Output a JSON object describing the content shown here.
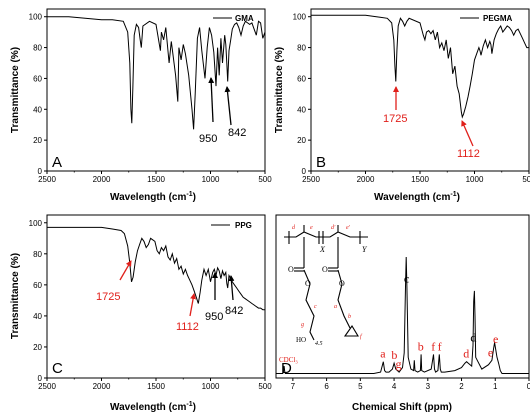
{
  "colors": {
    "line": "#000000",
    "red": "#e0201b",
    "black": "#000000"
  },
  "chart_data": [
    {
      "type": "line",
      "panel_letter": "A",
      "legend": "GMA",
      "xlabel": "Wavelength (cm",
      "xlabel_sup": "-1",
      "xlabel_close": ")",
      "ylabel": "Transmittance (%)",
      "xlim": [
        2500,
        500
      ],
      "ylim": [
        0,
        105
      ],
      "xticks": [
        "2500",
        "2000",
        "1500",
        "1000",
        "500"
      ],
      "yticks": [
        "0",
        "20",
        "40",
        "60",
        "80",
        "100"
      ],
      "x": [
        2500,
        2300,
        2150,
        2000,
        1900,
        1800,
        1760,
        1740,
        1730,
        1722,
        1712,
        1700,
        1680,
        1660,
        1645,
        1635,
        1620,
        1560,
        1500,
        1460,
        1450,
        1430,
        1410,
        1380,
        1360,
        1320,
        1300,
        1290,
        1270,
        1250,
        1230,
        1200,
        1170,
        1155,
        1140,
        1120,
        1100,
        1080,
        1050,
        1030,
        1010,
        990,
        970,
        950,
        935,
        920,
        905,
        890,
        870,
        860,
        850,
        842,
        830,
        815,
        800,
        780,
        760,
        740,
        720,
        700,
        680,
        660,
        640,
        620,
        600,
        580,
        560,
        540,
        520,
        500
      ],
      "y": [
        100,
        100,
        99,
        98,
        98,
        97,
        90,
        70,
        40,
        31,
        55,
        88,
        95,
        93,
        85,
        80,
        94,
        97,
        95,
        78,
        90,
        85,
        93,
        70,
        84,
        62,
        45,
        80,
        72,
        82,
        76,
        62,
        40,
        27,
        50,
        86,
        93,
        78,
        60,
        80,
        93,
        88,
        77,
        55,
        80,
        62,
        86,
        70,
        88,
        82,
        70,
        58,
        78,
        85,
        92,
        95,
        96,
        93,
        88,
        94,
        97,
        96,
        95,
        96,
        92,
        88,
        97,
        96,
        86,
        90
      ]
    },
    {
      "type": "line",
      "panel_letter": "B",
      "legend": "PEGMA",
      "xlabel": "Wavelength (cm",
      "xlabel_sup": "-1",
      "xlabel_close": ")",
      "ylabel": "Transmittance (%)",
      "xlim": [
        2500,
        500
      ],
      "ylim": [
        0,
        105
      ],
      "xticks": [
        "2500",
        "2000",
        "1500",
        "1000",
        "500"
      ],
      "yticks": [
        "0",
        "20",
        "40",
        "60",
        "80",
        "100"
      ],
      "x": [
        2500,
        2300,
        2150,
        2000,
        1900,
        1800,
        1760,
        1740,
        1730,
        1722,
        1712,
        1700,
        1680,
        1660,
        1640,
        1620,
        1600,
        1500,
        1470,
        1455,
        1440,
        1420,
        1400,
        1380,
        1360,
        1340,
        1320,
        1300,
        1280,
        1260,
        1240,
        1220,
        1200,
        1180,
        1160,
        1140,
        1120,
        1112,
        1100,
        1080,
        1060,
        1040,
        1020,
        1000,
        980,
        960,
        950,
        940,
        920,
        900,
        880,
        860,
        850,
        840,
        820,
        800,
        780,
        760,
        740,
        720,
        700,
        680,
        660,
        640,
        620,
        600,
        580,
        560,
        540,
        520,
        500
      ],
      "y": [
        101,
        101,
        101,
        101,
        100,
        99,
        96,
        85,
        68,
        58,
        78,
        94,
        99,
        97,
        94,
        97,
        99,
        96,
        88,
        85,
        90,
        91,
        89,
        91,
        85,
        90,
        80,
        83,
        78,
        85,
        73,
        80,
        63,
        68,
        55,
        50,
        38,
        35,
        37,
        42,
        48,
        55,
        63,
        72,
        76,
        80,
        78,
        75,
        81,
        85,
        80,
        84,
        82,
        76,
        85,
        89,
        92,
        94,
        90,
        92,
        94,
        93,
        91,
        88,
        91,
        92,
        89,
        86,
        83,
        80,
        80
      ]
    },
    {
      "type": "line",
      "panel_letter": "C",
      "legend": "PPG",
      "xlabel": "Wavelength (cm",
      "xlabel_sup": "-1",
      "xlabel_close": ")",
      "ylabel": "Transmittance (%)",
      "xlim": [
        2500,
        500
      ],
      "ylim": [
        0,
        105
      ],
      "xticks": [
        "2500",
        "2000",
        "1500",
        "1000",
        "500"
      ],
      "yticks": [
        "0",
        "20",
        "40",
        "60",
        "80",
        "100"
      ],
      "x": [
        2500,
        2300,
        2150,
        2000,
        1900,
        1820,
        1790,
        1760,
        1740,
        1725,
        1710,
        1690,
        1670,
        1650,
        1630,
        1610,
        1590,
        1570,
        1550,
        1530,
        1510,
        1490,
        1470,
        1450,
        1430,
        1410,
        1390,
        1370,
        1350,
        1330,
        1310,
        1290,
        1270,
        1250,
        1230,
        1210,
        1190,
        1170,
        1150,
        1130,
        1112,
        1095,
        1080,
        1060,
        1040,
        1020,
        1000,
        980,
        965,
        950,
        935,
        920,
        905,
        890,
        875,
        860,
        850,
        842,
        830,
        815,
        800,
        780,
        760,
        740,
        720,
        700,
        680,
        660,
        640,
        620,
        600,
        580,
        560,
        540,
        520,
        500
      ],
      "y": [
        97,
        97,
        97,
        97,
        96,
        95,
        93,
        85,
        74,
        62,
        65,
        75,
        82,
        86,
        90,
        88,
        84,
        86,
        90,
        89,
        88,
        82,
        80,
        84,
        82,
        85,
        78,
        76,
        80,
        74,
        77,
        70,
        72,
        67,
        70,
        66,
        63,
        60,
        56,
        52,
        48,
        55,
        63,
        70,
        66,
        70,
        62,
        68,
        70,
        66,
        71,
        69,
        64,
        69,
        66,
        68,
        61,
        58,
        66,
        64,
        62,
        60,
        58,
        56,
        54,
        52,
        51,
        50,
        49,
        48,
        47,
        46,
        45,
        45,
        44,
        44
      ]
    },
    {
      "type": "line",
      "panel_letter": "D",
      "xlabel": "Chemical Shift (ppm)",
      "xlim": [
        7.5,
        0
      ],
      "xticks": [
        "7",
        "6",
        "5",
        "4",
        "3",
        "2",
        "1",
        "0"
      ],
      "x": [
        7.5,
        7.3,
        7.28,
        7.26,
        7.24,
        7.22,
        7.0,
        6.0,
        5.0,
        4.6,
        4.4,
        4.32,
        4.28,
        4.24,
        4.15,
        4.05,
        4.0,
        3.95,
        3.85,
        3.75,
        3.7,
        3.66,
        3.64,
        3.62,
        3.58,
        3.5,
        3.42,
        3.4,
        3.38,
        3.3,
        3.22,
        3.2,
        3.18,
        3.1,
        2.9,
        2.83,
        2.8,
        2.77,
        2.7,
        2.66,
        2.63,
        2.6,
        2.5,
        2.2,
        2.0,
        1.9,
        1.85,
        1.8,
        1.7,
        1.66,
        1.64,
        1.62,
        1.6,
        1.58,
        1.4,
        1.2,
        1.1,
        1.05,
        1.02,
        1.0,
        0.95,
        0.9,
        0.85,
        0.8,
        0.5,
        0.0
      ],
      "y": [
        1,
        1,
        2,
        6,
        2,
        1,
        1,
        1,
        1,
        1,
        2,
        9,
        3,
        2,
        2,
        4,
        8,
        4,
        2,
        5,
        15,
        60,
        80,
        60,
        12,
        4,
        3,
        10,
        3,
        2,
        3,
        14,
        3,
        2,
        4,
        14,
        4,
        2,
        3,
        14,
        4,
        2,
        2,
        3,
        5,
        8,
        9,
        8,
        6,
        20,
        50,
        57,
        40,
        12,
        4,
        7,
        10,
        18,
        22,
        19,
        12,
        8,
        3,
        1,
        1,
        1
      ],
      "peak_labels": [
        {
          "text": "a",
          "x": 4.33
        },
        {
          "text": "b",
          "x": 3.99
        },
        {
          "text": "g",
          "x": 3.87
        },
        {
          "text": "c",
          "x": 3.63
        },
        {
          "text": "b",
          "x": 3.21
        },
        {
          "text": "f",
          "x": 2.84
        },
        {
          "text": "f",
          "x": 2.65
        },
        {
          "text": "d",
          "x": 1.86
        },
        {
          "text": "d",
          "x": 1.65
        },
        {
          "text": "e",
          "x": 1.14
        },
        {
          "text": "e",
          "x": 0.99
        }
      ],
      "solvent_label": "CDCl₃"
    }
  ],
  "annotations": {
    "A": [
      "950",
      "842"
    ],
    "B": [
      "1725",
      "1112"
    ],
    "C": [
      "1725",
      "1112",
      "950",
      "842"
    ]
  },
  "structure": {
    "top_labels": [
      "d",
      "e",
      "d'",
      "e'"
    ],
    "sub_x": "X",
    "sub_y": "Y",
    "ester_left": [
      "O",
      "O"
    ],
    "ester_right": [
      "O",
      "O"
    ],
    "chain_labels": [
      "c",
      "g",
      "a",
      "b",
      "f"
    ],
    "sub_45": "4.5",
    "end_group": "HO"
  }
}
